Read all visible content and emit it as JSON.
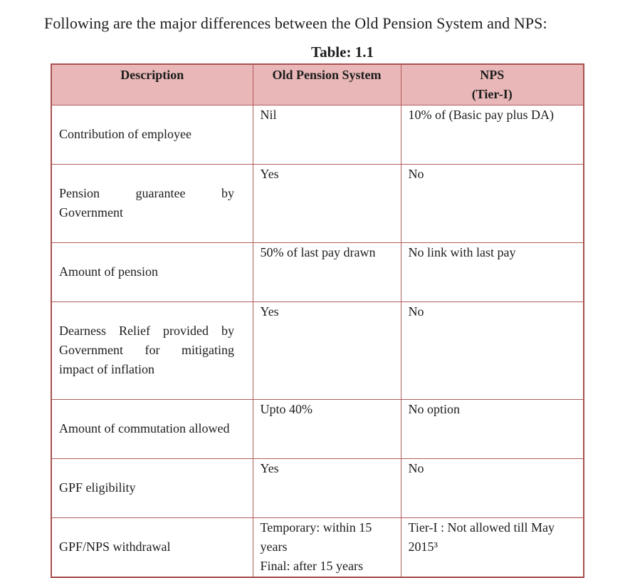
{
  "page": {
    "heading": "Following are the major differences between the Old Pension System and NPS:",
    "table_title": "Table: 1.1"
  },
  "table": {
    "headers": {
      "description": "Description",
      "old_pension_system": "Old Pension System",
      "nps": "NPS\n(Tier-I)"
    },
    "rows": [
      {
        "description": "Contribution of employee",
        "old_pension_system": "Nil",
        "nps": "10% of (Basic pay plus DA)"
      },
      {
        "description": "Pension guarantee by Government",
        "old_pension_system": "Yes",
        "nps": "No"
      },
      {
        "description": "Amount of pension",
        "old_pension_system": "50% of last pay drawn",
        "nps": "No link with last pay"
      },
      {
        "description": "Dearness Relief provided by Government for mitigating impact of inflation",
        "old_pension_system": "Yes",
        "nps": "No"
      },
      {
        "description": "Amount of commutation allowed",
        "old_pension_system": "Upto 40%",
        "nps": "No option"
      },
      {
        "description": "GPF eligibility",
        "old_pension_system": "Yes",
        "nps": "No"
      },
      {
        "description": "GPF/NPS withdrawal",
        "old_pension_system": "Temporary: within 15 years\nFinal: after 15 years",
        "nps": "Tier-I : Not allowed till May 2015³"
      }
    ]
  },
  "colors": {
    "header_bg": "#e9b7b7",
    "border": "#b05c5a",
    "border_outer": "#a85250",
    "text": "#1c1c1c",
    "page_bg": "#ffffff"
  }
}
